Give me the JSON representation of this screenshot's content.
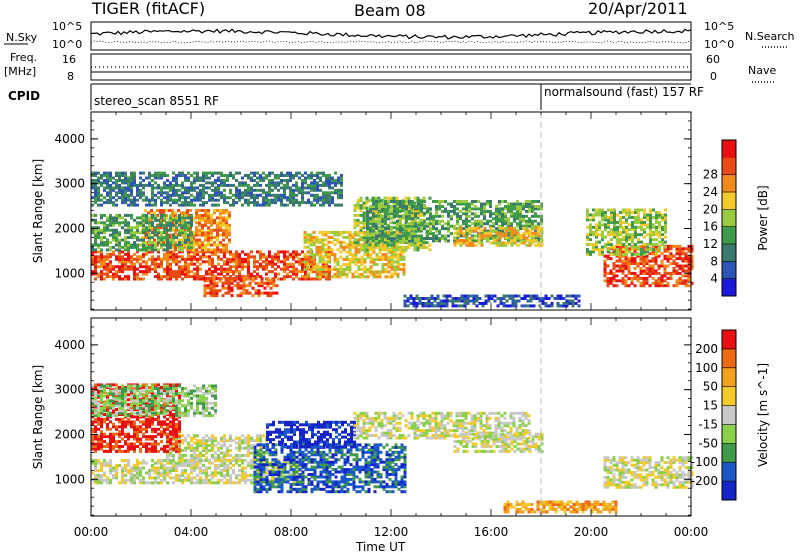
{
  "header": {
    "title": "TIGER (fitACF)",
    "beam": "Beam 08",
    "date": "20/Apr/2011"
  },
  "summary": {
    "nsky_label": "N.Sky",
    "nsky_ticks": [
      "10^5",
      "10^0"
    ],
    "nsearch_label": "N.Search",
    "freq_label": "Freq.",
    "freq_unit": "[MHz]",
    "freq_ticks": [
      "16",
      "8"
    ],
    "nave_ticks": [
      "60",
      "0"
    ],
    "nave_label": "Nave",
    "cpid_label": "CPID",
    "cpid_segments": [
      {
        "name": "stereo_scan",
        "id": "8551",
        "mode": "RF",
        "start_hr": 0,
        "end_hr": 18
      },
      {
        "name": "normalsound (fast)",
        "id": "157",
        "mode": "RF",
        "start_hr": 18,
        "end_hr": 24
      }
    ]
  },
  "chart_data": [
    {
      "type": "heatmap",
      "parameter": "Power",
      "xlabel": "Time UT",
      "ylabel": "Slant Range [km]",
      "xlim_hours": [
        0,
        24
      ],
      "x_tick_labels": [
        "00:00",
        "04:00",
        "08:00",
        "12:00",
        "16:00",
        "20:00",
        "00:00"
      ],
      "ylim": [
        180,
        4600
      ],
      "y_tick_labels": [
        "1000",
        "2000",
        "3000",
        "4000"
      ],
      "colorbar": {
        "label": "Power [dB]",
        "ticks": [
          "4",
          "8",
          "12",
          "16",
          "20",
          "24",
          "28"
        ],
        "colors": [
          "#1a1ad8",
          "#2d55b8",
          "#3a7a6e",
          "#3f9a4a",
          "#9acb3e",
          "#f2cb2a",
          "#f28a1c",
          "#ea4a14",
          "#e81010"
        ]
      },
      "echo_regions": [
        {
          "t0": 0.0,
          "t1": 9.5,
          "r0": 850,
          "r1": 1500,
          "level": 7
        },
        {
          "t0": 2.0,
          "t1": 5.5,
          "r0": 1500,
          "r1": 2400,
          "level": 6
        },
        {
          "t0": 4.5,
          "t1": 7.5,
          "r0": 480,
          "r1": 900,
          "level": 7
        },
        {
          "t0": 0.0,
          "t1": 4.0,
          "r0": 1500,
          "r1": 2300,
          "level": 3
        },
        {
          "t0": 8.5,
          "t1": 12.5,
          "r0": 900,
          "r1": 1900,
          "level": 5
        },
        {
          "t0": 10.5,
          "t1": 13.5,
          "r0": 1500,
          "r1": 2700,
          "level": 4
        },
        {
          "t0": 11.0,
          "t1": 18.0,
          "r0": 1700,
          "r1": 2600,
          "level": 3
        },
        {
          "t0": 14.5,
          "t1": 18.0,
          "r0": 1600,
          "r1": 2000,
          "level": 5
        },
        {
          "t0": 12.5,
          "t1": 19.5,
          "r0": 250,
          "r1": 500,
          "level": 1
        },
        {
          "t0": 20.5,
          "t1": 24.0,
          "r0": 700,
          "r1": 1600,
          "level": 7
        },
        {
          "t0": 19.8,
          "t1": 23.0,
          "r0": 1400,
          "r1": 2400,
          "level": 4
        },
        {
          "t0": 0.0,
          "t1": 10.0,
          "r0": 2500,
          "r1": 3250,
          "level": 2
        }
      ]
    },
    {
      "type": "heatmap",
      "parameter": "Velocity",
      "xlabel": "Time UT",
      "ylabel": "Slant Range [km]",
      "xlim_hours": [
        0,
        24
      ],
      "x_tick_labels": [
        "00:00",
        "04:00",
        "08:00",
        "12:00",
        "16:00",
        "20:00",
        "00:00"
      ],
      "ylim": [
        180,
        4600
      ],
      "y_tick_labels": [
        "1000",
        "2000",
        "3000",
        "4000"
      ],
      "colorbar": {
        "label": "Velocity [m s^-1]",
        "ticks": [
          "200",
          "100",
          "50",
          "15",
          "-15",
          "-50",
          "-100",
          "-200"
        ],
        "colors": [
          "#1424c8",
          "#1a58c8",
          "#3f9a4a",
          "#8bd04a",
          "#c8c8c8",
          "#f2cb2a",
          "#f2a21c",
          "#ee6a12",
          "#e81010"
        ]
      },
      "echo_regions": [
        {
          "t0": 0.0,
          "t1": 8.5,
          "r0": 900,
          "r1": 1400,
          "level": 4
        },
        {
          "t0": 3.0,
          "t1": 7.0,
          "r0": 1400,
          "r1": 2000,
          "level": 4
        },
        {
          "t0": 6.5,
          "t1": 12.5,
          "r0": 700,
          "r1": 1800,
          "level": 1
        },
        {
          "t0": 7.0,
          "t1": 10.5,
          "r0": 1700,
          "r1": 2300,
          "level": 0
        },
        {
          "t0": 10.5,
          "t1": 17.5,
          "r0": 1900,
          "r1": 2500,
          "level": 4
        },
        {
          "t0": 14.5,
          "t1": 18.0,
          "r0": 1600,
          "r1": 2000,
          "level": 4
        },
        {
          "t0": 16.5,
          "t1": 21.0,
          "r0": 250,
          "r1": 500,
          "level": 6
        },
        {
          "t0": 20.5,
          "t1": 24.0,
          "r0": 800,
          "r1": 1500,
          "level": 4
        },
        {
          "t0": 0.0,
          "t1": 3.5,
          "r0": 1600,
          "r1": 3100,
          "level": 8
        },
        {
          "t0": 0.0,
          "t1": 5.0,
          "r0": 2400,
          "r1": 3100,
          "level": 3
        }
      ]
    }
  ]
}
